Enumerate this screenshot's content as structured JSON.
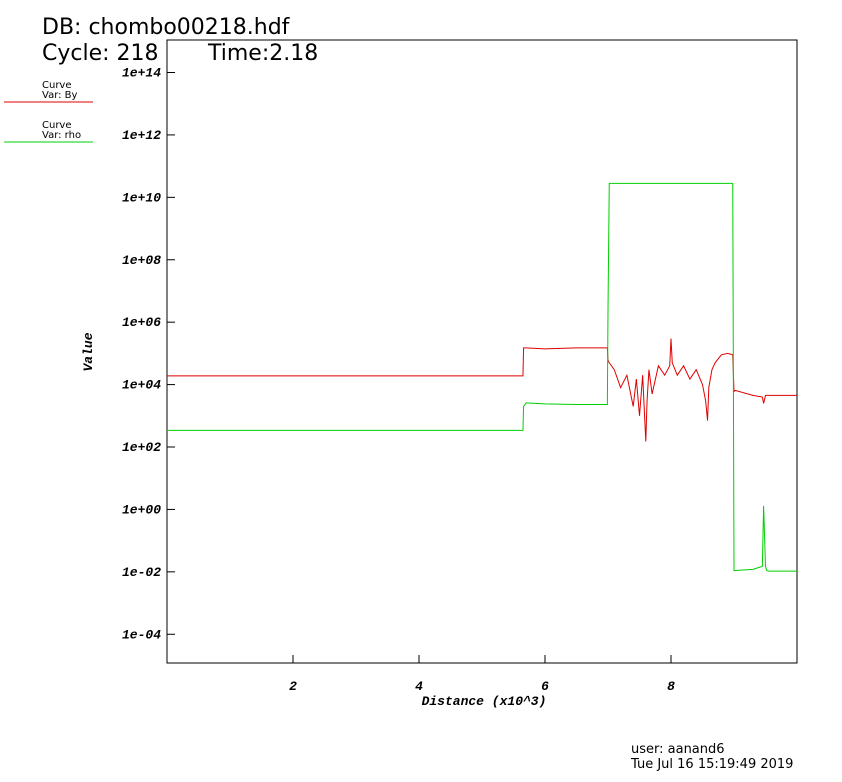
{
  "chart_data": {
    "type": "line",
    "title": "DB: chombo00218.hdf",
    "cycle": "Cycle: 218",
    "time": "Time:2.18",
    "x_label": "Distance (x10^3)",
    "y_label": "Value",
    "user": "user: aanand6",
    "date": "Tue Jul 16 15:19:49 2019",
    "yscale": "log",
    "xlim": [
      0,
      10
    ],
    "ylim": [
      1.2e-05,
      1100000000000000.0
    ],
    "xticks": [
      2,
      4,
      6,
      8
    ],
    "yticks": [
      {
        "value": 100000000000000.0,
        "label": "1e+14"
      },
      {
        "value": 1000000000000.0,
        "label": "1e+12"
      },
      {
        "value": 10000000000.0,
        "label": "1e+10"
      },
      {
        "value": 100000000.0,
        "label": "1e+08"
      },
      {
        "value": 1000000.0,
        "label": "1e+06"
      },
      {
        "value": 10000.0,
        "label": "1e+04"
      },
      {
        "value": 100.0,
        "label": "1e+02"
      },
      {
        "value": 1,
        "label": "1e+00"
      },
      {
        "value": 0.01,
        "label": "1e-02"
      },
      {
        "value": 0.0001,
        "label": "1e-04"
      }
    ],
    "x": [
      0,
      5.65,
      5.66,
      5.7,
      6.0,
      6.5,
      6.99,
      7.0,
      7.02,
      7.1,
      7.2,
      7.3,
      7.4,
      7.45,
      7.5,
      7.55,
      7.6,
      7.62,
      7.65,
      7.7,
      7.8,
      7.9,
      7.98,
      8.0,
      8.02,
      8.1,
      8.2,
      8.3,
      8.4,
      8.5,
      8.55,
      8.58,
      8.6,
      8.65,
      8.7,
      8.8,
      8.9,
      8.98,
      9.0,
      9.02,
      9.3,
      9.45,
      9.47,
      9.5,
      9.52,
      9.55,
      10
    ],
    "series": [
      {
        "label": "Curve",
        "name": "Var: By",
        "color": "#e00000",
        "values": [
          19000,
          19000,
          150000,
          150000,
          140000,
          150000,
          150000,
          60000,
          50000,
          30000,
          8000,
          20000,
          2000,
          15000,
          1000,
          20000,
          150,
          3000,
          30000,
          5000,
          40000,
          20000,
          40000,
          300000,
          50000,
          20000,
          40000,
          15000,
          30000,
          10000,
          3000,
          700,
          8000,
          30000,
          50000,
          90000,
          100000,
          90000,
          6000,
          6500,
          4500,
          4000,
          2500,
          4500,
          4500,
          4500,
          4500
        ]
      },
      {
        "label": "Curve",
        "name": "Var: rho",
        "color": "#00d000",
        "values": [
          340,
          340,
          2000,
          2600,
          2400,
          2300,
          2300,
          2400000,
          28000000000,
          28000000000,
          28000000000,
          28000000000,
          28000000000,
          28000000000,
          28000000000,
          28000000000,
          28000000000,
          28000000000,
          28000000000,
          28000000000,
          28000000000,
          28000000000,
          28000000000,
          28000000000,
          28000000000,
          28000000000,
          28000000000,
          28000000000,
          28000000000,
          28000000000,
          28000000000,
          28000000000,
          28000000000,
          28000000000,
          28000000000,
          28000000000,
          28000000000,
          28000000000,
          0.011,
          0.011,
          0.012,
          0.015,
          1.3,
          0.015,
          0.011,
          0.0105,
          0.0105
        ]
      }
    ]
  }
}
